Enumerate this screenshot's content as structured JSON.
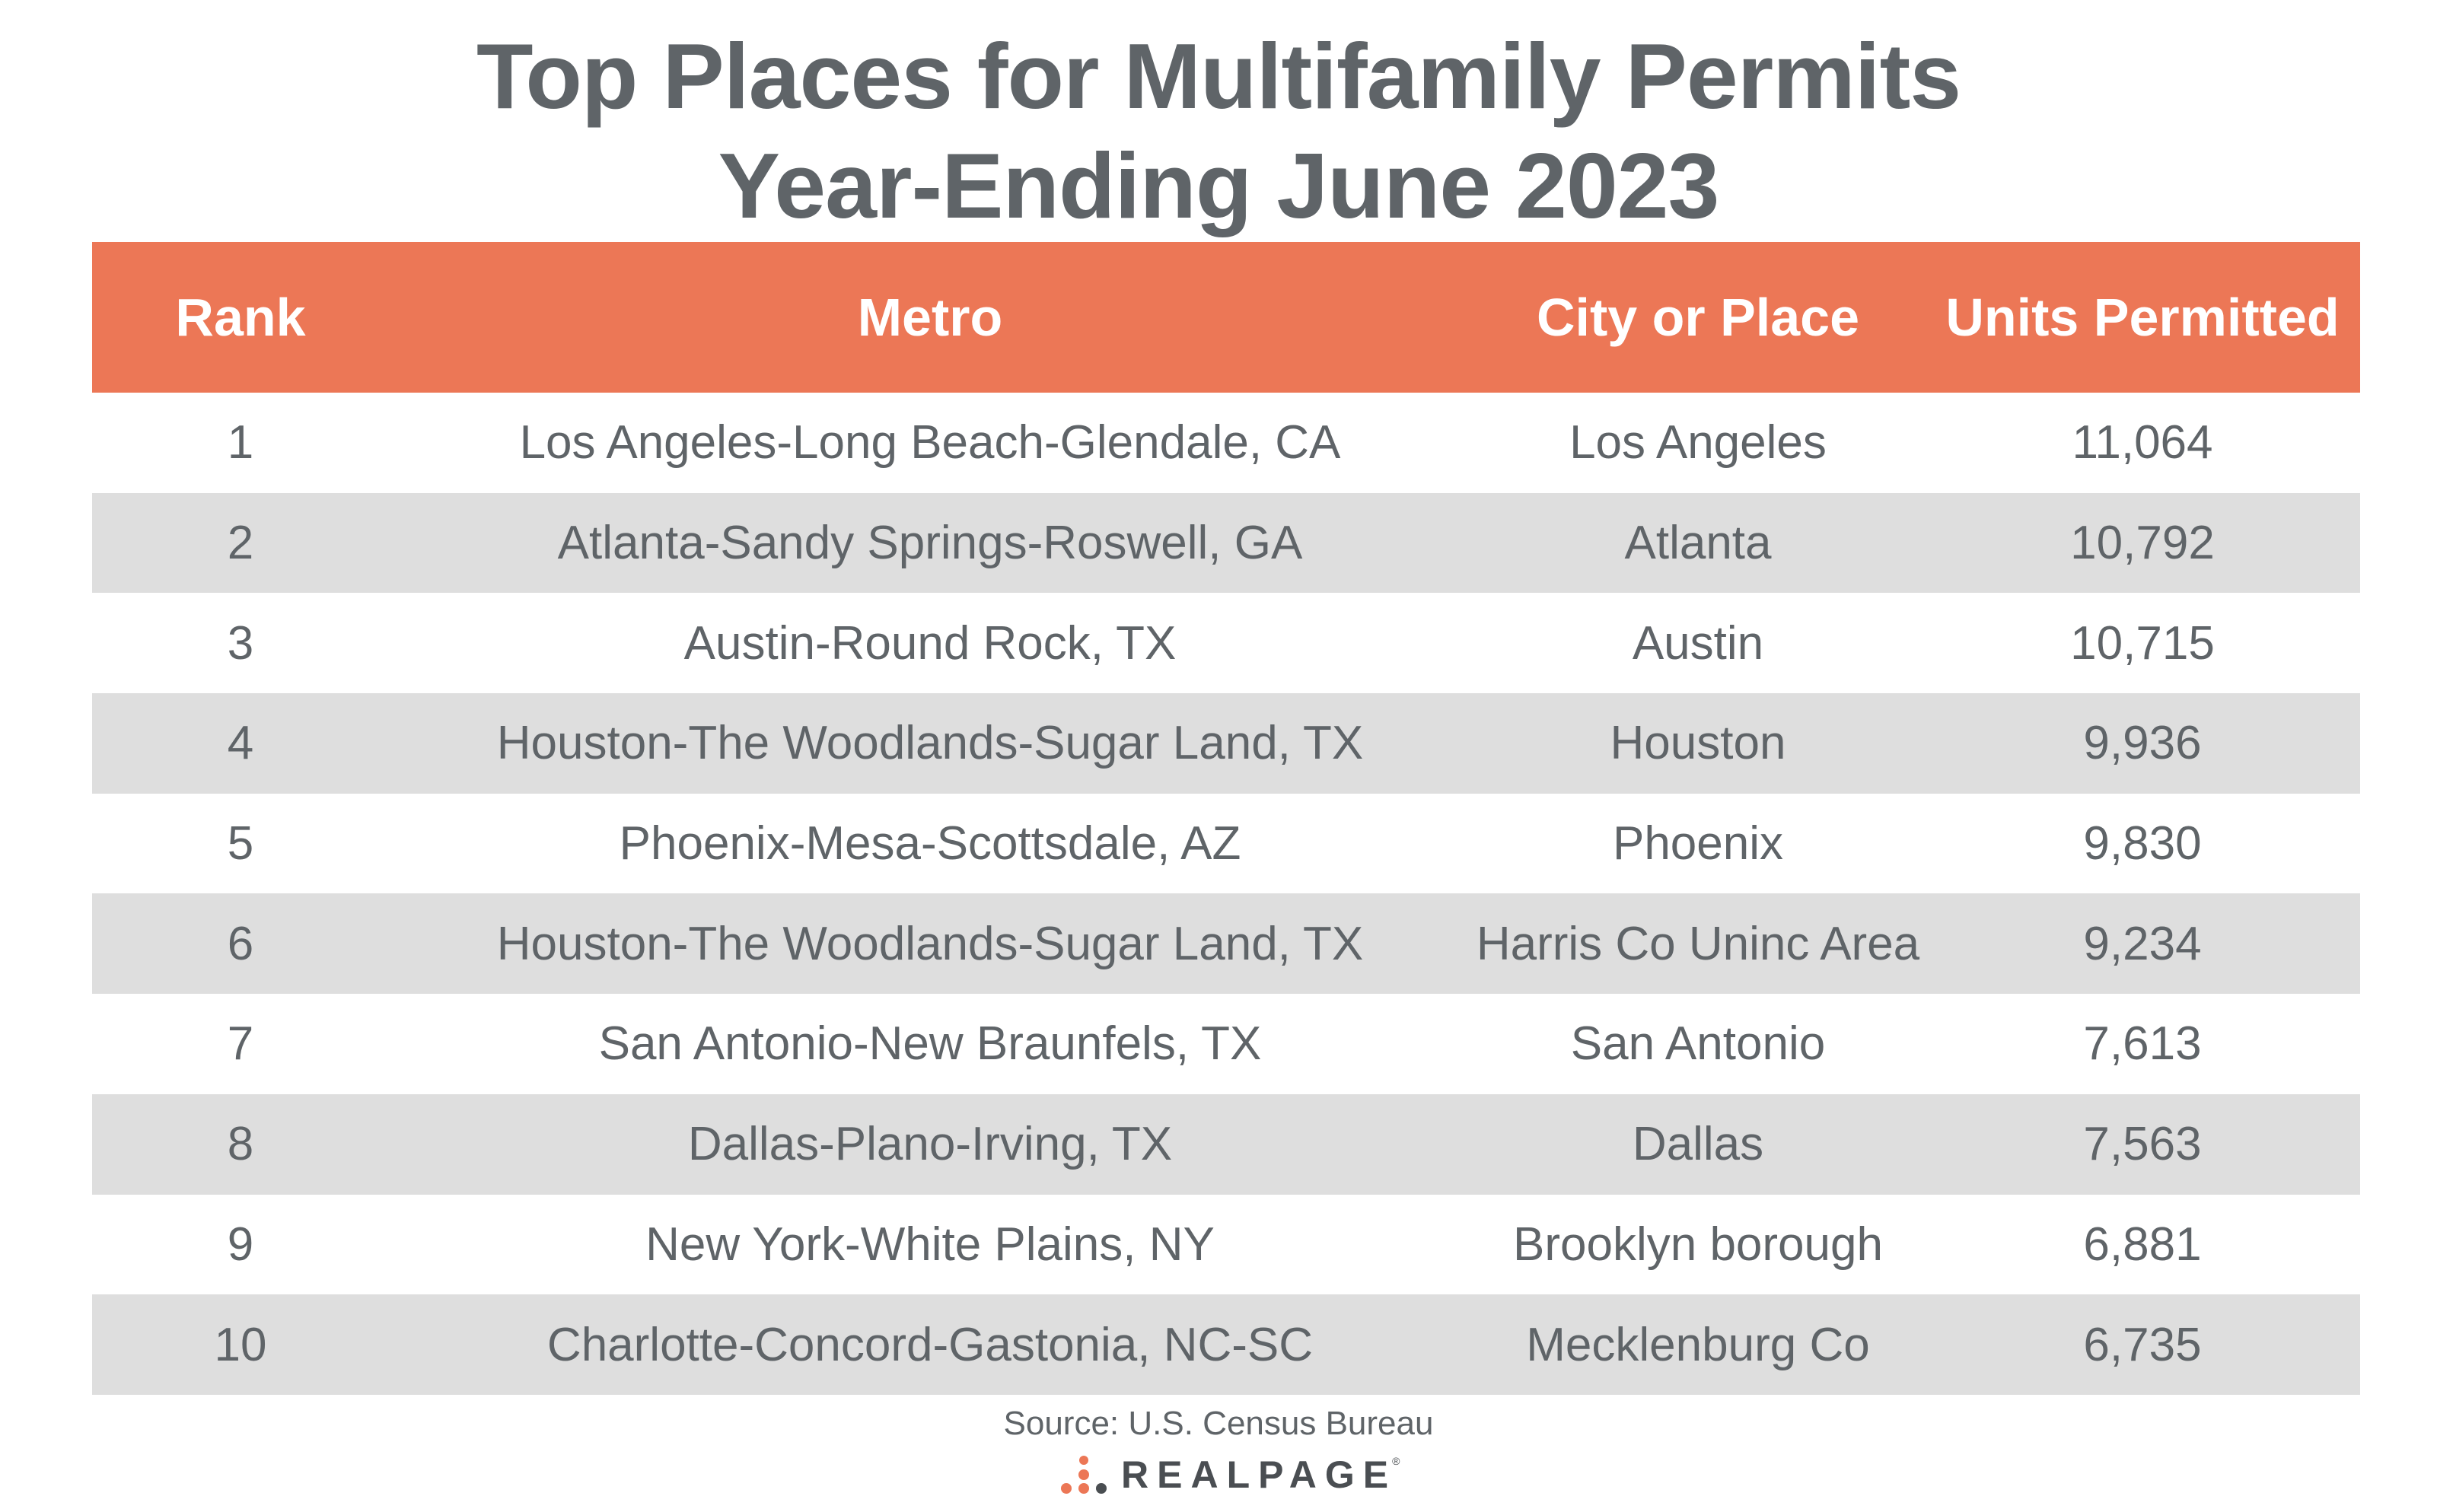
{
  "title": {
    "line1": "Top Places for Multifamily Permits",
    "line2": "Year-Ending June 2023"
  },
  "colors": {
    "header_bg": "#ec7756",
    "alt_row_bg": "#dedede",
    "text": "#5f6468"
  },
  "chart_data": {
    "type": "table",
    "title": "Top Places for Multifamily Permits Year-Ending June 2023",
    "columns": [
      "Rank",
      "Metro",
      "City or Place",
      "Units Permitted"
    ],
    "rows": [
      {
        "rank": "1",
        "metro": "Los Angeles-Long Beach-Glendale, CA",
        "place": "Los Angeles",
        "units": "11,064"
      },
      {
        "rank": "2",
        "metro": "Atlanta-Sandy Springs-Roswell, GA",
        "place": "Atlanta",
        "units": "10,792"
      },
      {
        "rank": "3",
        "metro": "Austin-Round Rock, TX",
        "place": "Austin",
        "units": "10,715"
      },
      {
        "rank": "4",
        "metro": "Houston-The Woodlands-Sugar Land, TX",
        "place": "Houston",
        "units": "9,936"
      },
      {
        "rank": "5",
        "metro": "Phoenix-Mesa-Scottsdale, AZ",
        "place": "Phoenix",
        "units": "9,830"
      },
      {
        "rank": "6",
        "metro": "Houston-The Woodlands-Sugar Land, TX",
        "place": "Harris Co Uninc Area",
        "units": "9,234"
      },
      {
        "rank": "7",
        "metro": "San Antonio-New Braunfels, TX",
        "place": "San Antonio",
        "units": "7,613"
      },
      {
        "rank": "8",
        "metro": "Dallas-Plano-Irving, TX",
        "place": "Dallas",
        "units": "7,563"
      },
      {
        "rank": "9",
        "metro": "New York-White Plains, NY",
        "place": "Brooklyn borough",
        "units": "6,881"
      },
      {
        "rank": "10",
        "metro": "Charlotte-Concord-Gastonia, NC-SC",
        "place": "Mecklenburg Co",
        "units": "6,735"
      }
    ]
  },
  "source": "Source: U.S. Census Bureau",
  "logo": {
    "text": "REALPAGE",
    "tm": "®",
    "icon": "realpage-dots-icon"
  }
}
